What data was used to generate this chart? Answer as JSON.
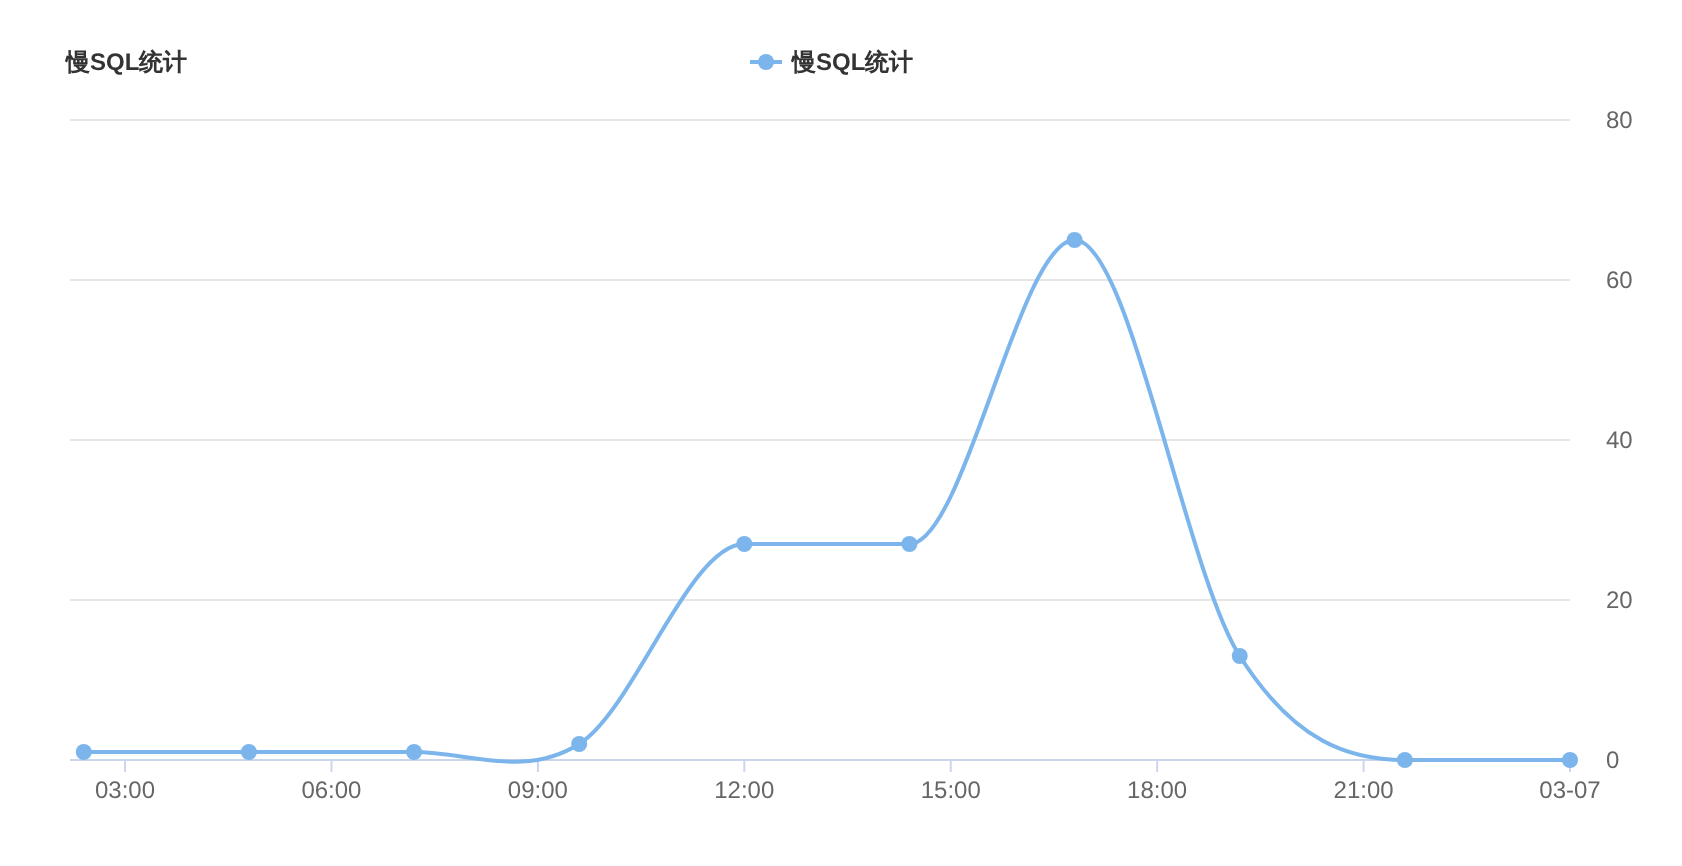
{
  "chart_data": {
    "type": "line",
    "title": "慢SQL统计",
    "x": [
      2.4,
      4.8,
      7.2,
      9.6,
      12,
      14.4,
      16.8,
      19.2,
      21.6,
      24
    ],
    "series": [
      {
        "name": "慢SQL统计",
        "color": "#7cb5ec",
        "values": [
          1,
          1,
          1,
          2,
          27,
          27,
          65,
          13,
          0,
          0
        ]
      }
    ],
    "xlim": [
      2.2,
      24
    ],
    "xticks": [
      {
        "value": 3,
        "label": "03:00"
      },
      {
        "value": 6,
        "label": "06:00"
      },
      {
        "value": 9,
        "label": "09:00"
      },
      {
        "value": 12,
        "label": "12:00"
      },
      {
        "value": 15,
        "label": "15:00"
      },
      {
        "value": 18,
        "label": "18:00"
      },
      {
        "value": 21,
        "label": "21:00"
      },
      {
        "value": 24,
        "label": "03-07"
      }
    ],
    "ylim": [
      0,
      80
    ],
    "yticks": [
      0,
      20,
      40,
      60,
      80
    ],
    "grid": "y",
    "legend": "top",
    "marker": "circle",
    "line_style": "solid"
  }
}
